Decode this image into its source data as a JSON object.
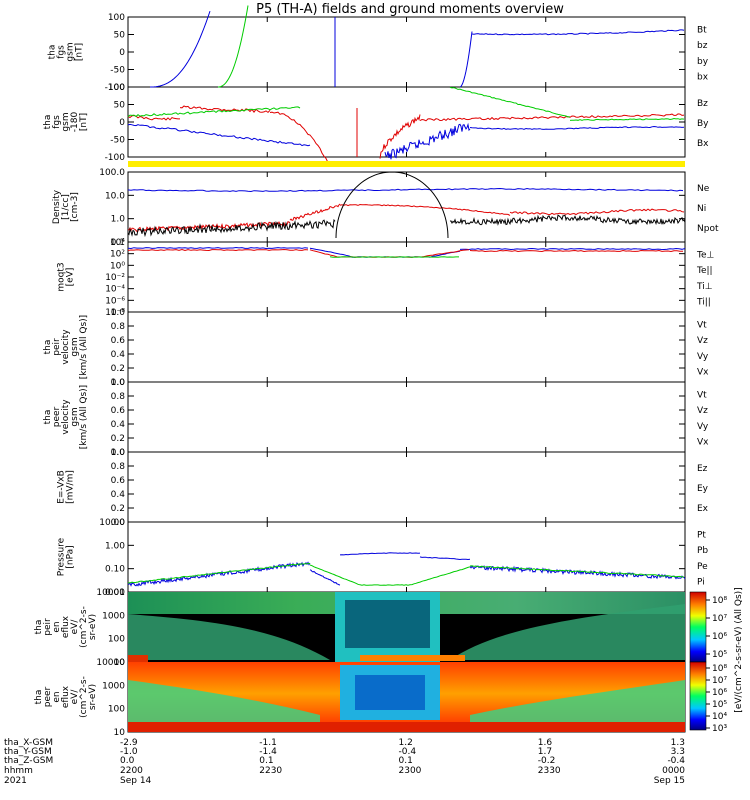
{
  "title": "P5 (TH-A) fields and ground moments overview",
  "colors": {
    "black": "#000000",
    "red": "#e00000",
    "green": "#00cc00",
    "blue": "#0000dd"
  },
  "panels": [
    {
      "id": "fgs",
      "ylabel": [
        "tha",
        "fgs",
        "gsm",
        "[nT]"
      ],
      "yticks": [
        "100",
        "50",
        "0",
        "-50",
        "-100"
      ],
      "legend": [
        {
          "text": "Bt",
          "color": "#000000"
        },
        {
          "text": "bz",
          "color": "#e00000"
        },
        {
          "text": "by",
          "color": "#00cc00"
        },
        {
          "text": "bx",
          "color": "#0000dd"
        }
      ]
    },
    {
      "id": "fgs_dsl",
      "ylabel": [
        "tha",
        "fgs",
        "gsm",
        "-180",
        "[nT]"
      ],
      "yticks": [
        "100",
        "50",
        "0",
        "-50",
        "-100"
      ],
      "legend": [
        {
          "text": "Bz",
          "color": "#e00000"
        },
        {
          "text": "By",
          "color": "#00cc00"
        },
        {
          "text": "Bx",
          "color": "#0000dd"
        }
      ]
    },
    {
      "id": "density",
      "ylabel": [
        "Density",
        "[1/cc]",
        "[cm-3]"
      ],
      "yticks": [
        "100.0",
        "10.0",
        "1.0",
        "0.1"
      ],
      "legend": [
        {
          "text": "Ne",
          "color": "#e00000"
        },
        {
          "text": "Ni",
          "color": "#000000"
        },
        {
          "text": "Npot",
          "color": "#0000dd"
        }
      ]
    },
    {
      "id": "temp",
      "ylabel": [
        "moqt3",
        "[eV]"
      ],
      "yticks": [
        "10⁴",
        "10²",
        "10⁰",
        "10⁻²",
        "10⁻⁴",
        "10⁻⁶",
        "10⁻⁸"
      ],
      "legend": [
        {
          "text": "Te⊥",
          "color": "#e00000"
        },
        {
          "text": "Te||",
          "color": "#000000"
        },
        {
          "text": "Ti⊥",
          "color": "#0000dd"
        },
        {
          "text": "Ti||",
          "color": "#00cc00"
        }
      ]
    },
    {
      "id": "peir_vel",
      "ylabel": [
        "tha",
        "peir",
        "velocity",
        "gsm",
        "[km/s (All Qs)]"
      ],
      "yticks": [
        "1.0",
        "0.8",
        "0.6",
        "0.4",
        "0.2",
        "0.0"
      ],
      "legend": [
        {
          "text": "Vt",
          "color": "#000000"
        },
        {
          "text": "Vz",
          "color": "#e00000"
        },
        {
          "text": "Vy",
          "color": "#00cc00"
        },
        {
          "text": "Vx",
          "color": "#0000dd"
        }
      ]
    },
    {
      "id": "peer_vel",
      "ylabel": [
        "tha",
        "peer",
        "velocity",
        "gsm",
        "[km/s (All Qs)]"
      ],
      "yticks": [
        "1.0",
        "0.8",
        "0.6",
        "0.4",
        "0.2",
        "0.0"
      ],
      "legend": [
        {
          "text": "Vt",
          "color": "#000000"
        },
        {
          "text": "Vz",
          "color": "#e00000"
        },
        {
          "text": "Vy",
          "color": "#00cc00"
        },
        {
          "text": "Vx",
          "color": "#0000dd"
        }
      ]
    },
    {
      "id": "efield",
      "ylabel": [
        "E=-VxB",
        "[mV/m]"
      ],
      "yticks": [
        "1.0",
        "0.8",
        "0.6",
        "0.4",
        "0.2",
        "0.0"
      ],
      "legend": [
        {
          "text": "Ez",
          "color": "#e00000"
        },
        {
          "text": "Ey",
          "color": "#00cc00"
        },
        {
          "text": "Ex",
          "color": "#0000dd"
        }
      ]
    },
    {
      "id": "pressure",
      "ylabel": [
        "Pressure",
        "[nPa]"
      ],
      "yticks": [
        "10.00",
        "1.00",
        "0.10",
        "0.01"
      ],
      "legend": [
        {
          "text": "Pt",
          "color": "#000000"
        },
        {
          "text": "Pb",
          "color": "#e00000"
        },
        {
          "text": "Pe",
          "color": "#00cc00"
        },
        {
          "text": "Pi",
          "color": "#0000dd"
        }
      ]
    },
    {
      "id": "peir_en",
      "ylabel": [
        "tha",
        "peir",
        "en",
        "eflux",
        "eV/",
        "(cm^2-s-",
        "sr-eV)"
      ],
      "yticks": [
        "10000",
        "1000",
        "100",
        "10"
      ],
      "legend": []
    },
    {
      "id": "peer_en",
      "ylabel": [
        "tha",
        "peer",
        "en",
        "eflux",
        "eV/",
        "(cm^2-s-",
        "sr-eV)"
      ],
      "yticks": [
        "10000",
        "1000",
        "100",
        "10"
      ],
      "legend": []
    }
  ],
  "colorbar": {
    "label": "[eV/(cm^2-s-sr-eV) (All Qs)]",
    "ticks_top": [
      "10⁸",
      "10⁷",
      "10⁶",
      "10⁵"
    ],
    "ticks_bottom": [
      "10⁸",
      "10⁷",
      "10⁶",
      "10⁵",
      "10⁴",
      "10³"
    ]
  },
  "xaxis": {
    "row_labels": [
      "tha_X-GSM",
      "tha_Y-GSM",
      "tha_Z-GSM",
      "hhmm",
      "2021"
    ],
    "columns": [
      {
        "x": "-2.9",
        "y": "-1.0",
        "z": "0.0",
        "hhmm": "2200",
        "date": "Sep 14"
      },
      {
        "x": "-1.1",
        "y": "-1.4",
        "z": "0.1",
        "hhmm": "2230",
        "date": ""
      },
      {
        "x": "1.2",
        "y": "-0.4",
        "z": "0.1",
        "hhmm": "2300",
        "date": ""
      },
      {
        "x": "1.6",
        "y": "1.7",
        "z": "-0.2",
        "hhmm": "2330",
        "date": ""
      },
      {
        "x": "1.3",
        "y": "3.3",
        "z": "-0.4",
        "hhmm": "0000",
        "date": "Sep 15"
      }
    ]
  },
  "chart_data": {
    "type": "line",
    "title": "P5 (TH-A) fields and ground moments overview",
    "x_time": [
      "2200",
      "2230",
      "2300",
      "2330",
      "0000"
    ],
    "density_ylim": [
      0.03,
      200
    ],
    "density": {
      "Ni": [
        0.05,
        0.1,
        150,
        0.08,
        0.6
      ],
      "Ne": [
        0.05,
        0.5,
        5,
        1,
        0.8
      ],
      "Npot": [
        20,
        20,
        15,
        12,
        10
      ]
    },
    "pressure_ylim": [
      0.005,
      20
    ],
    "pressure": {
      "Pi": [
        0.008,
        0.1,
        0.5,
        0.15,
        0.03
      ],
      "Pt": [
        0.008,
        0.1,
        0.05,
        0.15,
        0.03
      ]
    }
  }
}
